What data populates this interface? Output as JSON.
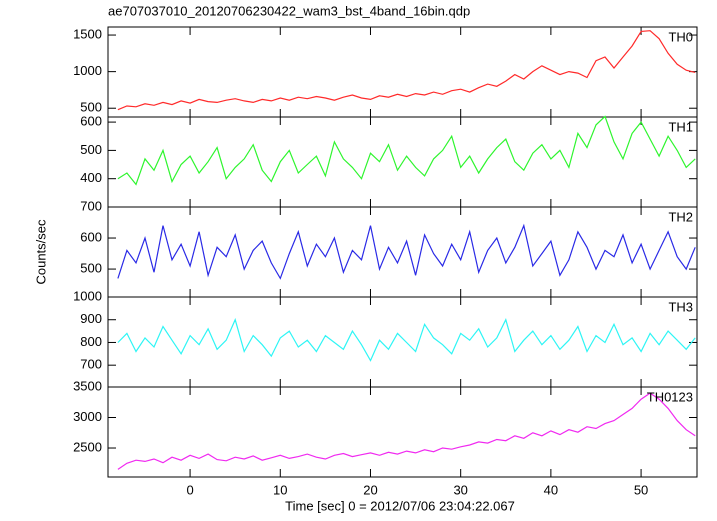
{
  "chart_data": [
    {
      "type": "line",
      "title": "ae707037010_20120706230422_wam3_bst_4band_16bin.qdp",
      "x": [
        -8,
        -7,
        -6,
        -5,
        -4,
        -3,
        -2,
        -1,
        0,
        1,
        2,
        3,
        4,
        5,
        6,
        7,
        8,
        9,
        10,
        11,
        12,
        13,
        14,
        15,
        16,
        17,
        18,
        19,
        20,
        21,
        22,
        23,
        24,
        25,
        26,
        27,
        28,
        29,
        30,
        31,
        32,
        33,
        34,
        35,
        36,
        37,
        38,
        39,
        40,
        41,
        42,
        43,
        44,
        45,
        46,
        47,
        48,
        49,
        50,
        51,
        52,
        53,
        54,
        55,
        56
      ],
      "series": [
        {
          "name": "TH0",
          "color": "#ff2a2a",
          "values": [
            480,
            530,
            520,
            560,
            540,
            580,
            550,
            600,
            570,
            620,
            590,
            580,
            610,
            630,
            600,
            580,
            620,
            600,
            640,
            610,
            650,
            630,
            660,
            640,
            610,
            650,
            680,
            640,
            620,
            670,
            650,
            690,
            660,
            700,
            680,
            720,
            690,
            740,
            760,
            720,
            780,
            830,
            800,
            870,
            960,
            900,
            1000,
            1080,
            1020,
            960,
            1000,
            980,
            920,
            1150,
            1200,
            1050,
            1200,
            1350,
            1550,
            1560,
            1450,
            1250,
            1100,
            1020,
            990
          ]
        }
      ],
      "xlim": [
        -9.1,
        56.2
      ],
      "xticks": [
        0,
        10,
        20,
        30,
        40,
        50
      ],
      "ylim": [
        380,
        1610
      ],
      "yticks": [
        500,
        1000,
        1500
      ]
    },
    {
      "type": "line",
      "x": [
        -8,
        -7,
        -6,
        -5,
        -4,
        -3,
        -2,
        -1,
        0,
        1,
        2,
        3,
        4,
        5,
        6,
        7,
        8,
        9,
        10,
        11,
        12,
        13,
        14,
        15,
        16,
        17,
        18,
        19,
        20,
        21,
        22,
        23,
        24,
        25,
        26,
        27,
        28,
        29,
        30,
        31,
        32,
        33,
        34,
        35,
        36,
        37,
        38,
        39,
        40,
        41,
        42,
        43,
        44,
        45,
        46,
        47,
        48,
        49,
        50,
        51,
        52,
        53,
        54,
        55,
        56
      ],
      "series": [
        {
          "name": "TH1",
          "color": "#2ef52e",
          "values": [
            400,
            420,
            380,
            470,
            430,
            500,
            390,
            450,
            480,
            420,
            460,
            510,
            400,
            440,
            470,
            520,
            430,
            390,
            460,
            500,
            420,
            450,
            480,
            410,
            530,
            470,
            440,
            400,
            490,
            460,
            520,
            430,
            480,
            440,
            410,
            470,
            500,
            550,
            440,
            480,
            420,
            470,
            510,
            540,
            460,
            430,
            490,
            520,
            470,
            500,
            440,
            560,
            510,
            590,
            620,
            530,
            470,
            560,
            600,
            540,
            480,
            550,
            500,
            440,
            470
          ]
        }
      ],
      "xlim": [
        -9.1,
        56.2
      ],
      "xticks": [
        0,
        10,
        20,
        30,
        40,
        50
      ],
      "ylim": [
        300,
        618
      ],
      "yticks": [
        400,
        500,
        600
      ]
    },
    {
      "type": "line",
      "ylabel": "Counts/sec",
      "x": [
        -8,
        -7,
        -6,
        -5,
        -4,
        -3,
        -2,
        -1,
        0,
        1,
        2,
        3,
        4,
        5,
        6,
        7,
        8,
        9,
        10,
        11,
        12,
        13,
        14,
        15,
        16,
        17,
        18,
        19,
        20,
        21,
        22,
        23,
        24,
        25,
        26,
        27,
        28,
        29,
        30,
        31,
        32,
        33,
        34,
        35,
        36,
        37,
        38,
        39,
        40,
        41,
        42,
        43,
        44,
        45,
        46,
        47,
        48,
        49,
        50,
        51,
        52,
        53,
        54,
        55,
        56
      ],
      "series": [
        {
          "name": "TH2",
          "color": "#2a2ae6",
          "values": [
            470,
            560,
            520,
            600,
            490,
            640,
            530,
            580,
            510,
            620,
            480,
            570,
            540,
            610,
            500,
            560,
            590,
            520,
            470,
            550,
            620,
            510,
            580,
            540,
            600,
            490,
            560,
            530,
            640,
            500,
            570,
            520,
            590,
            480,
            610,
            550,
            510,
            580,
            530,
            620,
            490,
            560,
            600,
            520,
            570,
            640,
            510,
            550,
            590,
            480,
            530,
            620,
            570,
            500,
            560,
            540,
            610,
            520,
            580,
            500,
            560,
            620,
            540,
            500,
            570
          ]
        }
      ],
      "xlim": [
        -9.1,
        56.2
      ],
      "xticks": [
        0,
        10,
        20,
        30,
        40,
        50
      ],
      "ylim": [
        410,
        700
      ],
      "yticks": [
        500,
        600,
        700
      ]
    },
    {
      "type": "line",
      "x": [
        -8,
        -7,
        -6,
        -5,
        -4,
        -3,
        -2,
        -1,
        0,
        1,
        2,
        3,
        4,
        5,
        6,
        7,
        8,
        9,
        10,
        11,
        12,
        13,
        14,
        15,
        16,
        17,
        18,
        19,
        20,
        21,
        22,
        23,
        24,
        25,
        26,
        27,
        28,
        29,
        30,
        31,
        32,
        33,
        34,
        35,
        36,
        37,
        38,
        39,
        40,
        41,
        42,
        43,
        44,
        45,
        46,
        47,
        48,
        49,
        50,
        51,
        52,
        53,
        54,
        55,
        56
      ],
      "series": [
        {
          "name": "TH3",
          "color": "#2ef5f5",
          "values": [
            800,
            840,
            760,
            820,
            780,
            870,
            810,
            750,
            830,
            790,
            860,
            770,
            810,
            900,
            760,
            830,
            790,
            740,
            820,
            850,
            780,
            810,
            760,
            830,
            800,
            770,
            850,
            790,
            720,
            810,
            770,
            840,
            800,
            760,
            880,
            820,
            790,
            750,
            840,
            810,
            860,
            780,
            820,
            900,
            760,
            810,
            850,
            790,
            830,
            770,
            810,
            870,
            760,
            830,
            800,
            880,
            790,
            820,
            760,
            840,
            790,
            850,
            810,
            770,
            820
          ]
        }
      ],
      "xlim": [
        -9.1,
        56.2
      ],
      "xticks": [
        0,
        10,
        20,
        30,
        40,
        50
      ],
      "ylim": [
        604,
        1000
      ],
      "yticks": [
        700,
        800,
        900,
        1000
      ]
    },
    {
      "type": "line",
      "xlabel": "Time [sec] 0 = 2012/07/06 23:04:22.067",
      "x": [
        -8,
        -7,
        -6,
        -5,
        -4,
        -3,
        -2,
        -1,
        0,
        1,
        2,
        3,
        4,
        5,
        6,
        7,
        8,
        9,
        10,
        11,
        12,
        13,
        14,
        15,
        16,
        17,
        18,
        19,
        20,
        21,
        22,
        23,
        24,
        25,
        26,
        27,
        28,
        29,
        30,
        31,
        32,
        33,
        34,
        35,
        36,
        37,
        38,
        39,
        40,
        41,
        42,
        43,
        44,
        45,
        46,
        47,
        48,
        49,
        50,
        51,
        52,
        53,
        54,
        55,
        56
      ],
      "series": [
        {
          "name": "TH0123",
          "color": "#f02af0",
          "values": [
            2150,
            2250,
            2300,
            2280,
            2320,
            2260,
            2350,
            2300,
            2380,
            2330,
            2400,
            2310,
            2290,
            2350,
            2320,
            2370,
            2300,
            2340,
            2380,
            2330,
            2360,
            2400,
            2350,
            2320,
            2380,
            2410,
            2360,
            2390,
            2420,
            2380,
            2430,
            2400,
            2450,
            2420,
            2470,
            2440,
            2500,
            2480,
            2520,
            2550,
            2600,
            2580,
            2640,
            2620,
            2700,
            2660,
            2750,
            2700,
            2780,
            2720,
            2800,
            2760,
            2850,
            2820,
            2900,
            2950,
            3050,
            3150,
            3300,
            3400,
            3300,
            3150,
            2950,
            2800,
            2700
          ]
        }
      ],
      "xlim": [
        -9.1,
        56.2
      ],
      "xticks": [
        0,
        10,
        20,
        30,
        40,
        50
      ],
      "ylim": [
        2025,
        3500
      ],
      "yticks": [
        2500,
        3000,
        3500
      ]
    }
  ]
}
